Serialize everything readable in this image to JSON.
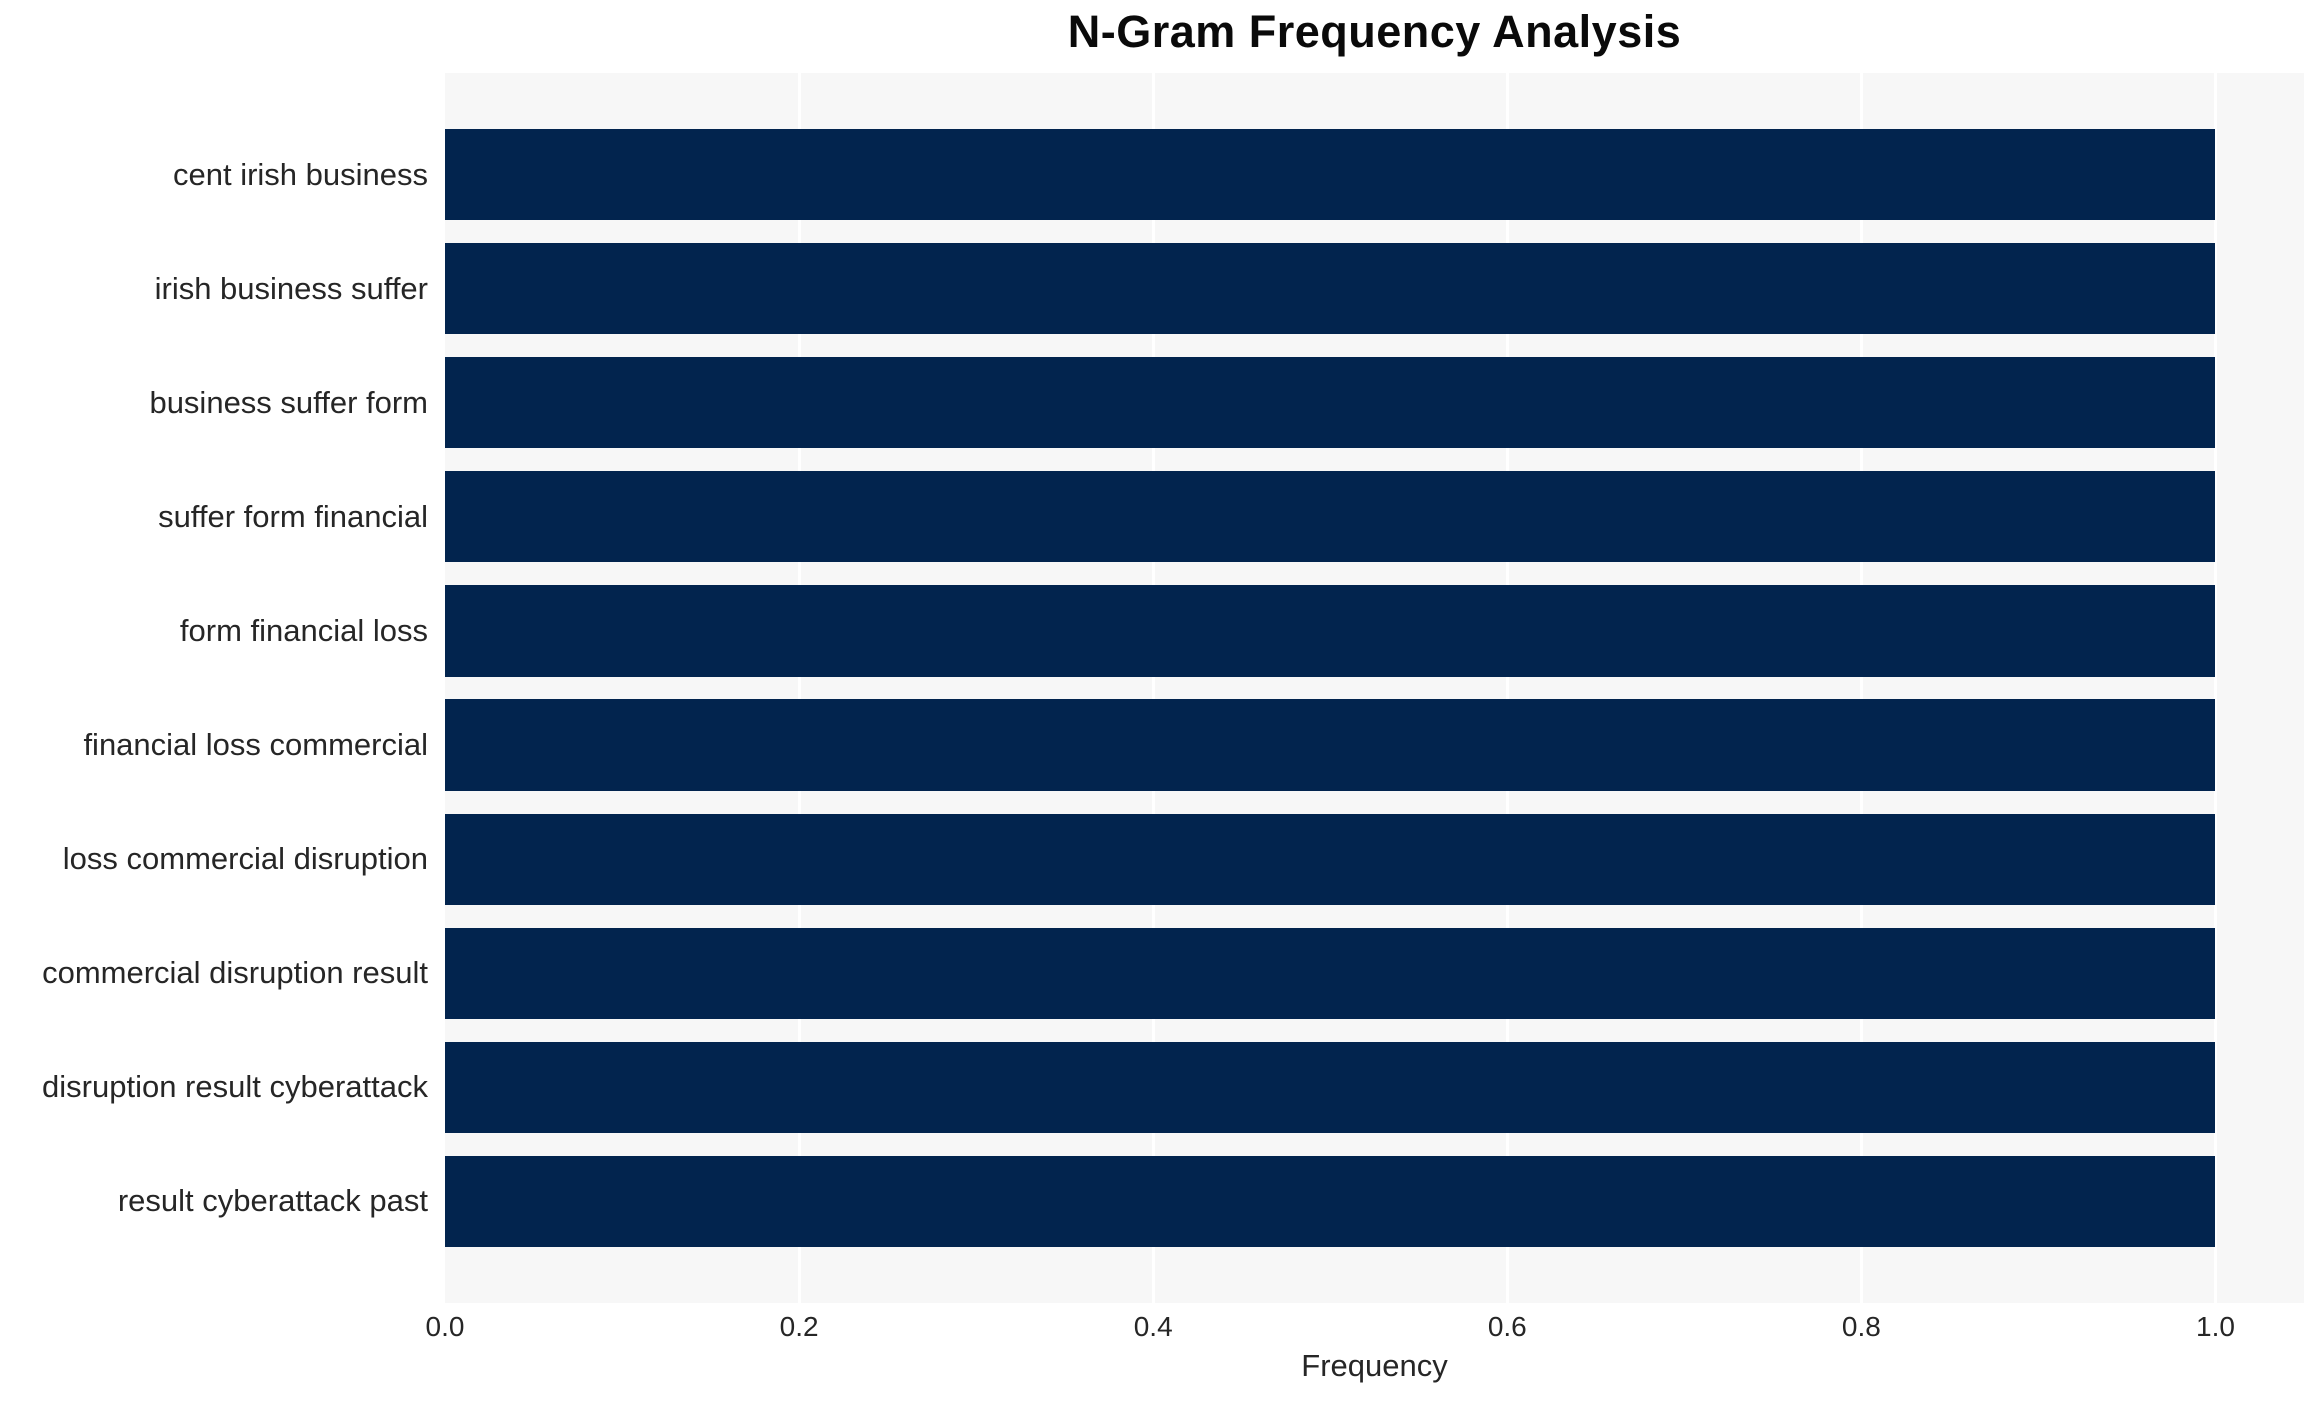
{
  "chart_data": {
    "type": "bar",
    "orientation": "horizontal",
    "title": "N-Gram Frequency Analysis",
    "xlabel": "Frequency",
    "ylabel": "",
    "categories": [
      "cent irish business",
      "irish business suffer",
      "business suffer form",
      "suffer form financial",
      "form financial loss",
      "financial loss commercial",
      "loss commercial disruption",
      "commercial disruption result",
      "disruption result cyberattack",
      "result cyberattack past"
    ],
    "values": [
      1.0,
      1.0,
      1.0,
      1.0,
      1.0,
      1.0,
      1.0,
      1.0,
      1.0,
      1.0
    ],
    "xlim": [
      0,
      1.05
    ],
    "xticks": [
      0.0,
      0.2,
      0.4,
      0.6,
      0.8,
      1.0
    ],
    "xtick_labels": [
      "0.0",
      "0.2",
      "0.4",
      "0.6",
      "0.8",
      "1.0"
    ],
    "grid": true,
    "legend": "none",
    "bar_color": "#02244e",
    "plot_bg": "#f7f7f7",
    "grid_color": "#ffffff",
    "text_color": "#262626"
  }
}
